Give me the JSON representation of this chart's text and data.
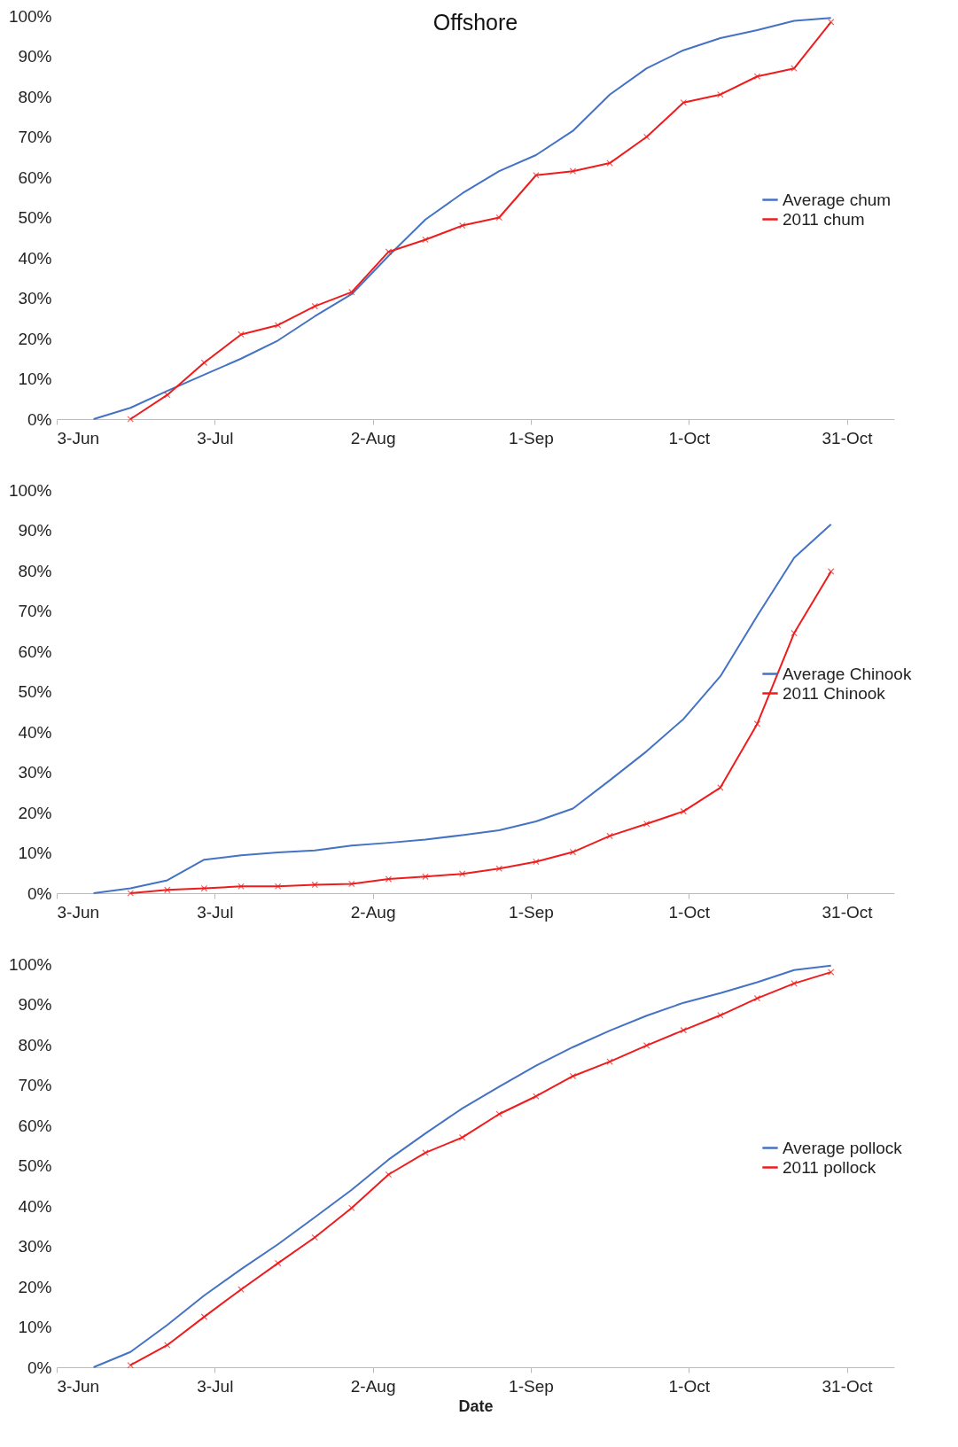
{
  "chart_data": [
    {
      "type": "line",
      "title": "Offshore",
      "xlim": [
        "--06-03",
        "--11-09"
      ],
      "xticks": [
        {
          "value": "--06-03",
          "label": "3-Jun"
        },
        {
          "value": "--07-03",
          "label": "3-Jul"
        },
        {
          "value": "--08-02",
          "label": "2-Aug"
        },
        {
          "value": "--09-01",
          "label": "1-Sep"
        },
        {
          "value": "--10-01",
          "label": "1-Oct"
        },
        {
          "value": "--10-31",
          "label": "31-Oct"
        }
      ],
      "ylim": [
        0,
        100
      ],
      "yticks": [
        {
          "value": 0,
          "label": "0%"
        },
        {
          "value": 10,
          "label": "10%"
        },
        {
          "value": 20,
          "label": "20%"
        },
        {
          "value": 30,
          "label": "30%"
        },
        {
          "value": 40,
          "label": "40%"
        },
        {
          "value": 50,
          "label": "50%"
        },
        {
          "value": 60,
          "label": "60%"
        },
        {
          "value": 70,
          "label": "70%"
        },
        {
          "value": 80,
          "label": "80%"
        },
        {
          "value": 90,
          "label": "90%"
        },
        {
          "value": 100,
          "label": "100%"
        }
      ],
      "grid": false,
      "legend": "right",
      "line_style": "solid",
      "series": [
        {
          "name": "Average chum",
          "color": "#4472c4",
          "marker": "none",
          "x": [
            "--06-10",
            "--06-17",
            "--06-24",
            "--07-01",
            "--07-08",
            "--07-15",
            "--07-22",
            "--07-29",
            "--08-05",
            "--08-12",
            "--08-19",
            "--08-26",
            "--09-02",
            "--09-09",
            "--09-16",
            "--09-23",
            "--09-30",
            "--10-07",
            "--10-14",
            "--10-21",
            "--10-28"
          ],
          "values": [
            0,
            2.8,
            7,
            11,
            15,
            19.5,
            25.5,
            31,
            40.5,
            49.5,
            56,
            61.5,
            65.5,
            71.5,
            80.5,
            87,
            91.5,
            94.5,
            96.5,
            98.8,
            99.5
          ]
        },
        {
          "name": "2011 chum",
          "color": "#ee1c1c",
          "marker": "cross",
          "x": [
            "--06-17",
            "--06-24",
            "--07-01",
            "--07-08",
            "--07-15",
            "--07-22",
            "--07-29",
            "--08-05",
            "--08-12",
            "--08-19",
            "--08-26",
            "--09-02",
            "--09-09",
            "--09-16",
            "--09-23",
            "--09-30",
            "--10-07",
            "--10-14",
            "--10-21",
            "--10-28"
          ],
          "values": [
            0,
            6,
            14,
            21,
            23.3,
            28,
            31.5,
            41.5,
            44.5,
            48,
            50,
            60.5,
            61.5,
            63.5,
            70,
            78.5,
            80.5,
            85,
            87,
            98.5
          ]
        }
      ]
    },
    {
      "type": "line",
      "xlim": [
        "--06-03",
        "--11-09"
      ],
      "xticks": [
        {
          "value": "--06-03",
          "label": "3-Jun"
        },
        {
          "value": "--07-03",
          "label": "3-Jul"
        },
        {
          "value": "--08-02",
          "label": "2-Aug"
        },
        {
          "value": "--09-01",
          "label": "1-Sep"
        },
        {
          "value": "--10-01",
          "label": "1-Oct"
        },
        {
          "value": "--10-31",
          "label": "31-Oct"
        }
      ],
      "ylim": [
        0,
        100
      ],
      "yticks": [
        {
          "value": 0,
          "label": "0%"
        },
        {
          "value": 10,
          "label": "10%"
        },
        {
          "value": 20,
          "label": "20%"
        },
        {
          "value": 30,
          "label": "30%"
        },
        {
          "value": 40,
          "label": "40%"
        },
        {
          "value": 50,
          "label": "50%"
        },
        {
          "value": 60,
          "label": "60%"
        },
        {
          "value": 70,
          "label": "70%"
        },
        {
          "value": 80,
          "label": "80%"
        },
        {
          "value": 90,
          "label": "90%"
        },
        {
          "value": 100,
          "label": "100%"
        }
      ],
      "grid": false,
      "legend": "right",
      "line_style": "solid",
      "series": [
        {
          "name": "Average Chinook",
          "color": "#4472c4",
          "marker": "none",
          "x": [
            "--06-10",
            "--06-17",
            "--06-24",
            "--07-01",
            "--07-08",
            "--07-15",
            "--07-22",
            "--07-29",
            "--08-05",
            "--08-12",
            "--08-19",
            "--08-26",
            "--09-02",
            "--09-09",
            "--09-16",
            "--09-23",
            "--09-30",
            "--10-07",
            "--10-14",
            "--10-21",
            "--10-28"
          ],
          "values": [
            0,
            1.2,
            3.2,
            8.3,
            9.4,
            10.1,
            10.6,
            11.8,
            12.5,
            13.3,
            14.4,
            15.6,
            17.8,
            21,
            28,
            35.2,
            43.2,
            53.8,
            68.8,
            83.2,
            91.5
          ]
        },
        {
          "name": "2011 Chinook",
          "color": "#ee1c1c",
          "marker": "cross",
          "x": [
            "--06-17",
            "--06-24",
            "--07-01",
            "--07-08",
            "--07-15",
            "--07-22",
            "--07-29",
            "--08-05",
            "--08-12",
            "--08-19",
            "--08-26",
            "--09-02",
            "--09-09",
            "--09-16",
            "--09-23",
            "--09-30",
            "--10-07",
            "--10-14",
            "--10-21",
            "--10-28"
          ],
          "values": [
            0,
            0.8,
            1.2,
            1.7,
            1.7,
            2.1,
            2.3,
            3.5,
            4.1,
            4.8,
            6.1,
            7.8,
            10.2,
            14.2,
            17.2,
            20.3,
            26.2,
            42,
            64.5,
            79.8
          ]
        }
      ]
    },
    {
      "type": "line",
      "xlabel": "Date",
      "xlim": [
        "--06-03",
        "--11-09"
      ],
      "xticks": [
        {
          "value": "--06-03",
          "label": "3-Jun"
        },
        {
          "value": "--07-03",
          "label": "3-Jul"
        },
        {
          "value": "--08-02",
          "label": "2-Aug"
        },
        {
          "value": "--09-01",
          "label": "1-Sep"
        },
        {
          "value": "--10-01",
          "label": "1-Oct"
        },
        {
          "value": "--10-31",
          "label": "31-Oct"
        }
      ],
      "ylim": [
        0,
        100
      ],
      "yticks": [
        {
          "value": 0,
          "label": "0%"
        },
        {
          "value": 10,
          "label": "10%"
        },
        {
          "value": 20,
          "label": "20%"
        },
        {
          "value": 30,
          "label": "30%"
        },
        {
          "value": 40,
          "label": "40%"
        },
        {
          "value": 50,
          "label": "50%"
        },
        {
          "value": 60,
          "label": "60%"
        },
        {
          "value": 70,
          "label": "70%"
        },
        {
          "value": 80,
          "label": "80%"
        },
        {
          "value": 90,
          "label": "90%"
        },
        {
          "value": 100,
          "label": "100%"
        }
      ],
      "grid": false,
      "legend": "right",
      "line_style": "solid",
      "series": [
        {
          "name": "Average pollock",
          "color": "#4472c4",
          "marker": "none",
          "x": [
            "--06-10",
            "--06-17",
            "--06-24",
            "--07-01",
            "--07-08",
            "--07-15",
            "--07-22",
            "--07-29",
            "--08-05",
            "--08-12",
            "--08-19",
            "--08-26",
            "--09-02",
            "--09-09",
            "--09-16",
            "--09-23",
            "--09-30",
            "--10-07",
            "--10-14",
            "--10-21",
            "--10-28"
          ],
          "values": [
            0,
            3.8,
            10.5,
            17.8,
            24.3,
            30.5,
            37.2,
            44,
            51.5,
            58,
            64.2,
            69.6,
            74.8,
            79.4,
            83.5,
            87.2,
            90.4,
            92.8,
            95.5,
            98.5,
            99.6
          ]
        },
        {
          "name": "2011 pollock",
          "color": "#ee1c1c",
          "marker": "cross",
          "x": [
            "--06-17",
            "--06-24",
            "--07-01",
            "--07-08",
            "--07-15",
            "--07-22",
            "--07-29",
            "--08-05",
            "--08-12",
            "--08-19",
            "--08-26",
            "--09-02",
            "--09-09",
            "--09-16",
            "--09-23",
            "--09-30",
            "--10-07",
            "--10-14",
            "--10-21",
            "--10-28"
          ],
          "values": [
            0.5,
            5.5,
            12.5,
            19.3,
            25.8,
            32.2,
            39.5,
            47.8,
            53.2,
            57,
            62.8,
            67.2,
            72.2,
            75.8,
            79.8,
            83.6,
            87.3,
            91.5,
            95.2,
            98
          ]
        }
      ]
    }
  ]
}
